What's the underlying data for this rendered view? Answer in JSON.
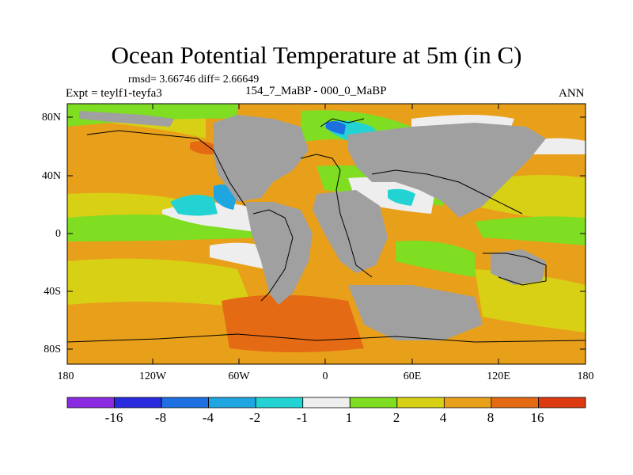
{
  "title": "Ocean Potential Temperature at 5m (in C)",
  "stats": "rmsd= 3.66746 diff= 2.66649",
  "experiment": "Expt = teylf1-teyfa3",
  "case_label": "154_7_MaBP - 000_0_MaBP",
  "season": "ANN",
  "lat_labels": [
    "80N",
    "40N",
    "0",
    "40S",
    "80S"
  ],
  "lon_labels": [
    "180",
    "120W",
    "60W",
    "0",
    "60E",
    "120E",
    "180"
  ],
  "colorbar": {
    "labels": [
      "-16",
      "-8",
      "-4",
      "-2",
      "-1",
      "1",
      "2",
      "4",
      "8",
      "16"
    ],
    "colors": [
      "#8a2be2",
      "#2a2adf",
      "#1e6fe0",
      "#1fa6e0",
      "#23d3d3",
      "#eeeeee",
      "#7fdd22",
      "#d8d015",
      "#e8a01a",
      "#e56a14",
      "#dd3a11"
    ]
  },
  "colors": {
    "land": "#a0a0a0",
    "ocean_base": "#e8a01a",
    "coast": "#000000"
  }
}
